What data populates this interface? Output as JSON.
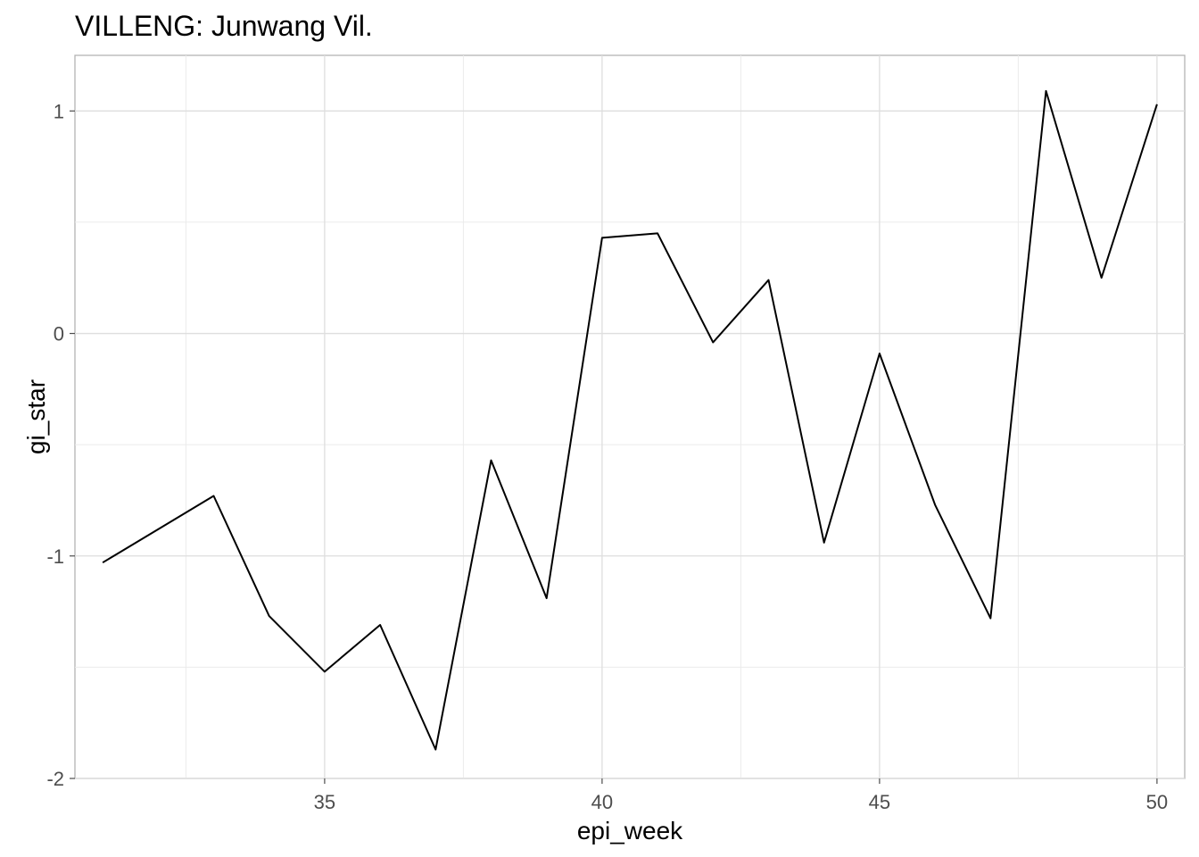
{
  "chart_data": {
    "type": "line",
    "title": "VILLENG: Junwang Vil.",
    "xlabel": "epi_week",
    "ylabel": "gi_star",
    "xlim": [
      30.5,
      50.5
    ],
    "ylim": [
      -2.0,
      1.25
    ],
    "x_ticks": [
      35,
      40,
      45,
      50
    ],
    "y_ticks": [
      -2,
      -1,
      0,
      1
    ],
    "x_tick_labels": [
      "35",
      "40",
      "45",
      "50"
    ],
    "y_tick_labels": [
      "-2",
      "-1",
      "0",
      "1"
    ],
    "grid": true,
    "legend": "none",
    "series": [
      {
        "color": "#000000",
        "x": [
          31,
          32,
          33,
          34,
          35,
          36,
          37,
          38,
          39,
          40,
          41,
          42,
          43,
          44,
          45,
          46,
          47,
          48,
          49,
          50
        ],
        "y": [
          -1.03,
          -0.88,
          -0.73,
          -1.27,
          -1.52,
          -1.31,
          -1.87,
          -0.57,
          -1.19,
          0.43,
          0.45,
          -0.04,
          0.24,
          -0.94,
          -0.09,
          -0.77,
          -1.28,
          1.09,
          0.25,
          1.03
        ]
      }
    ]
  }
}
